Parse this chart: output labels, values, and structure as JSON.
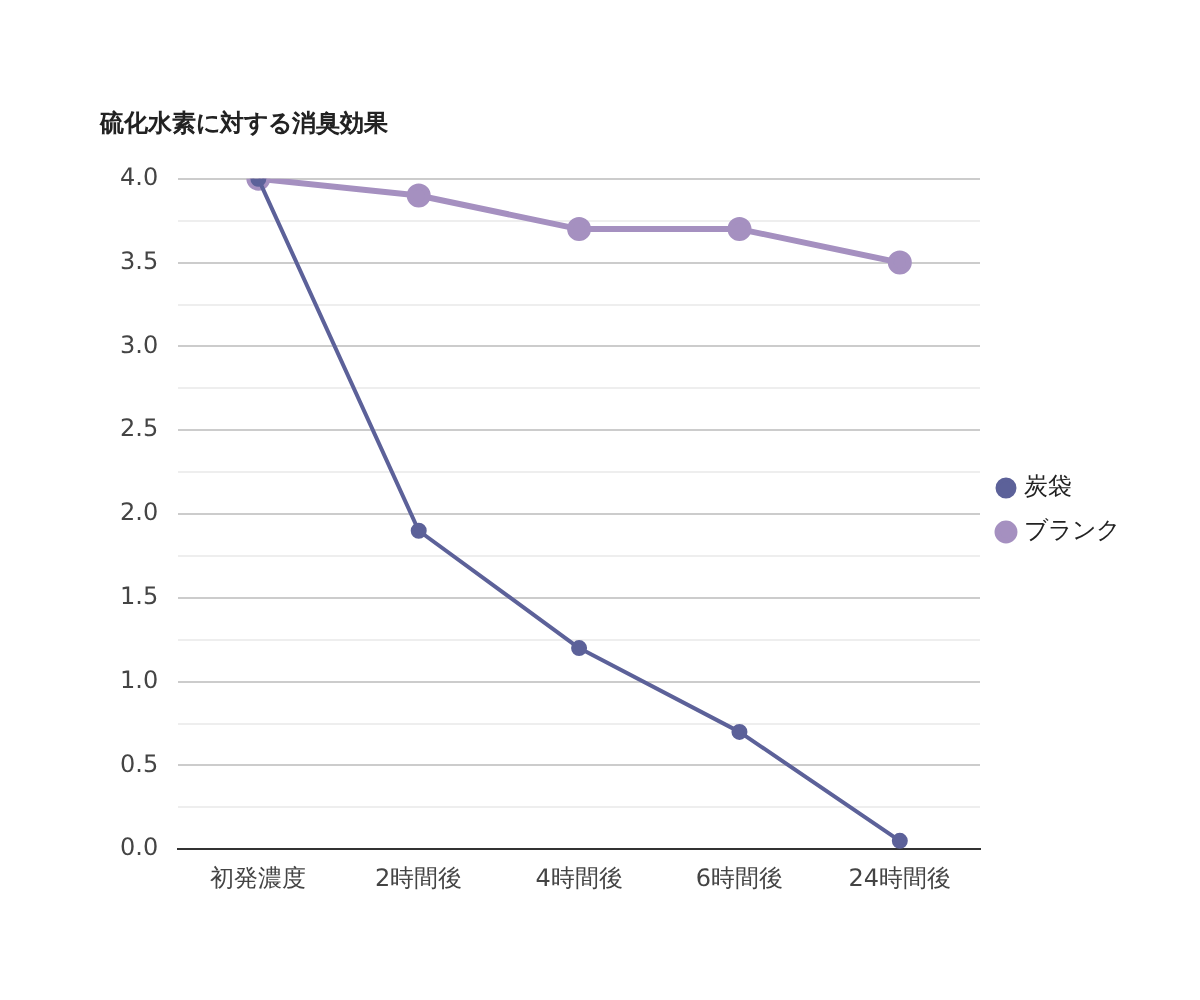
{
  "chart_data": {
    "type": "line",
    "title": "硫化水素に対する消臭効果",
    "categories": [
      "初発濃度",
      "2時間後",
      "4時間後",
      "6時間後",
      "24時間後"
    ],
    "series": [
      {
        "name": "炭袋",
        "color": "#5c6199",
        "values": [
          4.0,
          1.9,
          1.2,
          0.7,
          0.05
        ]
      },
      {
        "name": "ブランク",
        "color": "#a590c0",
        "values": [
          4.0,
          3.9,
          3.7,
          3.7,
          3.5
        ]
      }
    ],
    "ylim": [
      0,
      4
    ],
    "yticks": [
      {
        "value": 0,
        "label": "0.0"
      },
      {
        "value": 0.25,
        "label": null
      },
      {
        "value": 0.5,
        "label": "0.5"
      },
      {
        "value": 0.75,
        "label": null
      },
      {
        "value": 1,
        "label": "1.0"
      },
      {
        "value": 1.25,
        "label": null
      },
      {
        "value": 1.5,
        "label": "1.5"
      },
      {
        "value": 1.75,
        "label": null
      },
      {
        "value": 2,
        "label": "2.0"
      },
      {
        "value": 2.25,
        "label": null
      },
      {
        "value": 2.5,
        "label": "2.5"
      },
      {
        "value": 2.75,
        "label": null
      },
      {
        "value": 3,
        "label": "3.0"
      },
      {
        "value": 3.25,
        "label": null
      },
      {
        "value": 3.5,
        "label": "3.5"
      },
      {
        "value": 3.75,
        "label": null
      },
      {
        "value": 4,
        "label": "4.0"
      }
    ],
    "grid": "y",
    "legend": "right",
    "marker": "circle",
    "line_style": "solid"
  }
}
